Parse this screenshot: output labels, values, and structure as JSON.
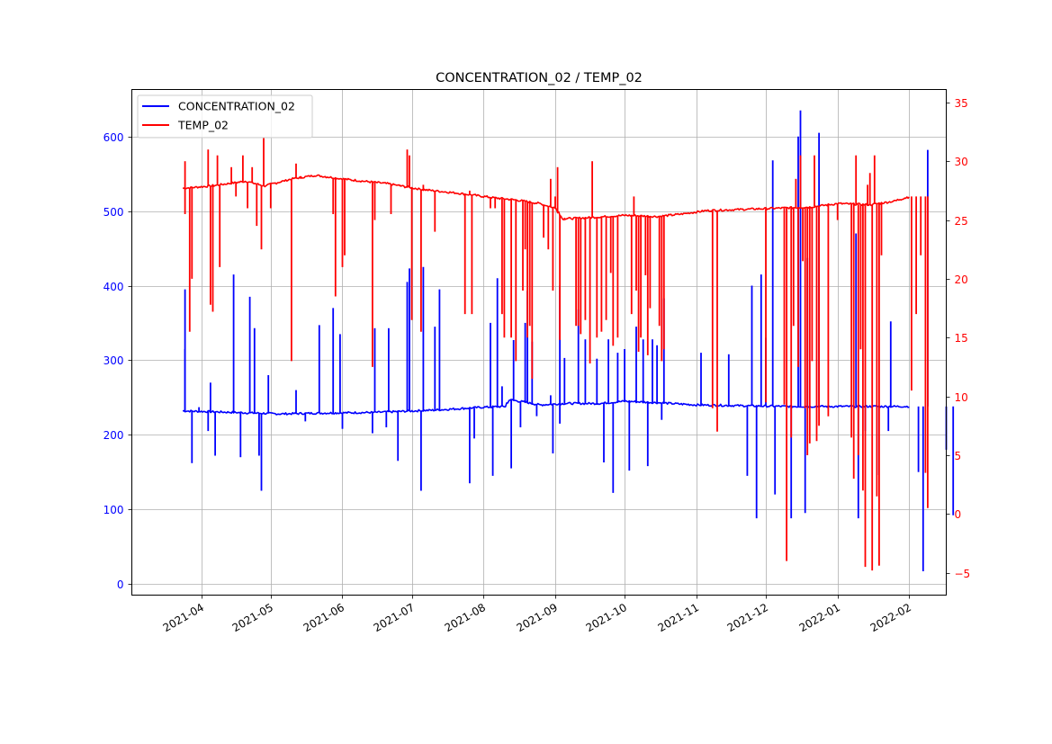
{
  "chart_data": {
    "type": "line",
    "title": "CONCENTRATION_02 / TEMP_02",
    "xlabel": "",
    "ylabel_left": "",
    "ylabel_right": "",
    "x_type": "date",
    "xlim": [
      "2021-03-02",
      "2022-02-17"
    ],
    "x_ticks": [
      "2021-04-01",
      "2021-05-01",
      "2021-06-01",
      "2021-07-01",
      "2021-08-01",
      "2021-09-01",
      "2021-10-01",
      "2021-11-01",
      "2021-12-01",
      "2022-01-01",
      "2022-02-01"
    ],
    "x_tick_labels": [
      "2021-04",
      "2021-05",
      "2021-06",
      "2021-07",
      "2021-08",
      "2021-09",
      "2021-10",
      "2021-11",
      "2021-12",
      "2022-01",
      "2022-02"
    ],
    "ylim_left": [
      -15,
      663
    ],
    "y_ticks_left": [
      0,
      100,
      200,
      300,
      400,
      500,
      600
    ],
    "ylim_right": [
      -6.9,
      36.1
    ],
    "y_ticks_right": [
      -5,
      0,
      5,
      10,
      15,
      20,
      25,
      30,
      35
    ],
    "y_tick_labels_right": [
      "−5",
      "0",
      "5",
      "10",
      "15",
      "20",
      "25",
      "30",
      "35"
    ],
    "grid": true,
    "legend_position": "upper-left",
    "colors": {
      "left_axis": "#0000ff",
      "right_axis": "#ff0000",
      "grid": "#b0b0b0"
    },
    "series": [
      {
        "name": "CONCENTRATION_02",
        "axis": "left",
        "color": "#0000ff",
        "baseline": [
          [
            "2021-03-24",
            232
          ],
          [
            "2021-04-15",
            230
          ],
          [
            "2021-05-05",
            228
          ],
          [
            "2021-05-20",
            229
          ],
          [
            "2021-06-15",
            230
          ],
          [
            "2021-07-10",
            233
          ],
          [
            "2021-08-01",
            237
          ],
          [
            "2021-08-10",
            238
          ],
          [
            "2021-08-12",
            247
          ],
          [
            "2021-08-20",
            243
          ],
          [
            "2021-08-25",
            240
          ],
          [
            "2021-09-05",
            242
          ],
          [
            "2021-09-20",
            242
          ],
          [
            "2021-10-01",
            245
          ],
          [
            "2021-10-15",
            243
          ],
          [
            "2021-11-01",
            240
          ],
          [
            "2021-11-20",
            239
          ],
          [
            "2021-12-10",
            238
          ],
          [
            "2022-01-01",
            238
          ],
          [
            "2022-01-20",
            238
          ],
          [
            "2022-02-01",
            238
          ]
        ],
        "spikes": [
          [
            "2021-03-25",
            395
          ],
          [
            "2021-03-25",
            315
          ],
          [
            "2021-03-28",
            162
          ],
          [
            "2021-03-31",
            237
          ],
          [
            "2021-04-04",
            205
          ],
          [
            "2021-04-05",
            270
          ],
          [
            "2021-04-07",
            172
          ],
          [
            "2021-04-15",
            415
          ],
          [
            "2021-04-18",
            170
          ],
          [
            "2021-04-22",
            385
          ],
          [
            "2021-04-24",
            343
          ],
          [
            "2021-04-26",
            172
          ],
          [
            "2021-04-27",
            125
          ],
          [
            "2021-04-30",
            280
          ],
          [
            "2021-05-12",
            260
          ],
          [
            "2021-05-16",
            218
          ],
          [
            "2021-05-22",
            347
          ],
          [
            "2021-05-28",
            370
          ],
          [
            "2021-05-31",
            335
          ],
          [
            "2021-06-01",
            208
          ],
          [
            "2021-06-14",
            202
          ],
          [
            "2021-06-15",
            343
          ],
          [
            "2021-06-20",
            210
          ],
          [
            "2021-06-21",
            343
          ],
          [
            "2021-06-25",
            165
          ],
          [
            "2021-06-29",
            405
          ],
          [
            "2021-06-30",
            423
          ],
          [
            "2021-07-05",
            125
          ],
          [
            "2021-07-06",
            425
          ],
          [
            "2021-07-11",
            345
          ],
          [
            "2021-07-13",
            395
          ],
          [
            "2021-07-26",
            135
          ],
          [
            "2021-07-28",
            195
          ],
          [
            "2021-08-04",
            350
          ],
          [
            "2021-08-05",
            145
          ],
          [
            "2021-08-07",
            410
          ],
          [
            "2021-08-09",
            265
          ],
          [
            "2021-08-13",
            155
          ],
          [
            "2021-08-14",
            327
          ],
          [
            "2021-08-17",
            210
          ],
          [
            "2021-08-19",
            350
          ],
          [
            "2021-08-20",
            393
          ],
          [
            "2021-08-22",
            325
          ],
          [
            "2021-08-24",
            225
          ],
          [
            "2021-08-30",
            253
          ],
          [
            "2021-08-31",
            175
          ],
          [
            "2021-09-03",
            400
          ],
          [
            "2021-09-03",
            215
          ],
          [
            "2021-09-05",
            303
          ],
          [
            "2021-09-11",
            368
          ],
          [
            "2021-09-14",
            328
          ],
          [
            "2021-09-19",
            302
          ],
          [
            "2021-09-22",
            163
          ],
          [
            "2021-09-24",
            328
          ],
          [
            "2021-09-26",
            122
          ],
          [
            "2021-09-28",
            310
          ],
          [
            "2021-10-01",
            315
          ],
          [
            "2021-10-03",
            152
          ],
          [
            "2021-10-06",
            345
          ],
          [
            "2021-10-09",
            328
          ],
          [
            "2021-10-11",
            158
          ],
          [
            "2021-10-13",
            328
          ],
          [
            "2021-10-15",
            320
          ],
          [
            "2021-10-17",
            220
          ],
          [
            "2021-10-18",
            383
          ],
          [
            "2021-11-03",
            310
          ],
          [
            "2021-11-15",
            308
          ],
          [
            "2021-11-23",
            145
          ],
          [
            "2021-11-25",
            400
          ],
          [
            "2021-11-27",
            88
          ],
          [
            "2021-11-29",
            415
          ],
          [
            "2021-12-01",
            330
          ],
          [
            "2021-12-04",
            568
          ],
          [
            "2021-12-05",
            120
          ],
          [
            "2021-12-12",
            88
          ],
          [
            "2021-12-15",
            600
          ],
          [
            "2021-12-16",
            635
          ],
          [
            "2021-12-18",
            95
          ],
          [
            "2021-12-19",
            437
          ],
          [
            "2021-12-24",
            605
          ],
          [
            "2022-01-09",
            470
          ],
          [
            "2022-01-10",
            88
          ],
          [
            "2022-01-13",
            205
          ],
          [
            "2022-01-18",
            146
          ],
          [
            "2022-01-23",
            205
          ],
          [
            "2022-01-24",
            352
          ],
          [
            "2022-02-05",
            150
          ],
          [
            "2022-02-07",
            17
          ],
          [
            "2022-02-09",
            582
          ],
          [
            "2022-02-17",
            180
          ],
          [
            "2022-02-20",
            92
          ]
        ]
      },
      {
        "name": "TEMP_02",
        "axis": "right",
        "color": "#ff0000",
        "baseline": [
          [
            "2021-03-24",
            27.7
          ],
          [
            "2021-04-05",
            27.9
          ],
          [
            "2021-04-20",
            28.3
          ],
          [
            "2021-04-28",
            27.9
          ],
          [
            "2021-05-10",
            28.5
          ],
          [
            "2021-05-20",
            28.8
          ],
          [
            "2021-06-05",
            28.4
          ],
          [
            "2021-06-20",
            28.1
          ],
          [
            "2021-07-05",
            27.6
          ],
          [
            "2021-07-20",
            27.3
          ],
          [
            "2021-08-05",
            26.9
          ],
          [
            "2021-08-15",
            26.7
          ],
          [
            "2021-08-25",
            26.4
          ],
          [
            "2021-09-01",
            26.0
          ],
          [
            "2021-09-04",
            25.1
          ],
          [
            "2021-09-15",
            25.2
          ],
          [
            "2021-10-01",
            25.4
          ],
          [
            "2021-10-15",
            25.3
          ],
          [
            "2021-10-25",
            25.5
          ],
          [
            "2021-11-05",
            25.8
          ],
          [
            "2021-11-20",
            25.9
          ],
          [
            "2021-12-05",
            26.0
          ],
          [
            "2021-12-20",
            26.1
          ],
          [
            "2022-01-01",
            26.4
          ],
          [
            "2022-01-15",
            26.3
          ],
          [
            "2022-01-25",
            26.6
          ],
          [
            "2022-02-01",
            27.0
          ]
        ],
        "spikes": [
          [
            "2021-03-25",
            30.0
          ],
          [
            "2021-03-25",
            25.5
          ],
          [
            "2021-03-27",
            15.5
          ],
          [
            "2021-03-28",
            20.0
          ],
          [
            "2021-04-04",
            31.0
          ],
          [
            "2021-04-05",
            17.8
          ],
          [
            "2021-04-06",
            17.2
          ],
          [
            "2021-04-08",
            30.5
          ],
          [
            "2021-04-09",
            21.0
          ],
          [
            "2021-04-14",
            29.5
          ],
          [
            "2021-04-16",
            27.0
          ],
          [
            "2021-04-19",
            30.5
          ],
          [
            "2021-04-21",
            26.0
          ],
          [
            "2021-04-23",
            29.5
          ],
          [
            "2021-04-25",
            24.5
          ],
          [
            "2021-04-27",
            22.5
          ],
          [
            "2021-04-28",
            32.0
          ],
          [
            "2021-05-01",
            26.0
          ],
          [
            "2021-05-10",
            13.0
          ],
          [
            "2021-05-12",
            29.8
          ],
          [
            "2021-05-14",
            28.5
          ],
          [
            "2021-05-28",
            25.5
          ],
          [
            "2021-05-29",
            18.5
          ],
          [
            "2021-06-01",
            21.0
          ],
          [
            "2021-06-02",
            22.0
          ],
          [
            "2021-06-14",
            12.5
          ],
          [
            "2021-06-14",
            28.0
          ],
          [
            "2021-06-15",
            25.0
          ],
          [
            "2021-06-22",
            25.5
          ],
          [
            "2021-06-26",
            28.0
          ],
          [
            "2021-06-29",
            31.0
          ],
          [
            "2021-06-30",
            30.5
          ],
          [
            "2021-07-01",
            16.5
          ],
          [
            "2021-07-05",
            15.5
          ],
          [
            "2021-07-06",
            28.0
          ],
          [
            "2021-07-11",
            24.0
          ],
          [
            "2021-07-24",
            17.0
          ],
          [
            "2021-07-26",
            27.5
          ],
          [
            "2021-07-27",
            17.0
          ],
          [
            "2021-08-04",
            26.0
          ],
          [
            "2021-08-06",
            26.0
          ],
          [
            "2021-08-09",
            17.0
          ],
          [
            "2021-08-10",
            15.0
          ],
          [
            "2021-08-13",
            15.0
          ],
          [
            "2021-08-15",
            13.0
          ],
          [
            "2021-08-18",
            19.0
          ],
          [
            "2021-08-19",
            22.5
          ],
          [
            "2021-08-20",
            15.0
          ],
          [
            "2021-08-21",
            16.0
          ],
          [
            "2021-08-22",
            11.5
          ],
          [
            "2021-08-27",
            23.5
          ],
          [
            "2021-08-29",
            22.5
          ],
          [
            "2021-08-30",
            28.5
          ],
          [
            "2021-08-31",
            19.0
          ],
          [
            "2021-09-01",
            27.0
          ],
          [
            "2021-09-02",
            29.5
          ],
          [
            "2021-09-03",
            14.8
          ],
          [
            "2021-09-05",
            25.2
          ],
          [
            "2021-09-10",
            16.0
          ],
          [
            "2021-09-11",
            16.0
          ],
          [
            "2021-09-12",
            15.3
          ],
          [
            "2021-09-14",
            16.5
          ],
          [
            "2021-09-16",
            12.8
          ],
          [
            "2021-09-17",
            30.0
          ],
          [
            "2021-09-19",
            15.0
          ],
          [
            "2021-09-21",
            15.5
          ],
          [
            "2021-09-23",
            16.5
          ],
          [
            "2021-09-25",
            20.5
          ],
          [
            "2021-09-26",
            14.3
          ],
          [
            "2021-09-28",
            15.0
          ],
          [
            "2021-10-04",
            17.0
          ],
          [
            "2021-10-05",
            27.0
          ],
          [
            "2021-10-06",
            19.0
          ],
          [
            "2021-10-07",
            13.8
          ],
          [
            "2021-10-08",
            15.0
          ],
          [
            "2021-10-10",
            20.3
          ],
          [
            "2021-10-11",
            13.5
          ],
          [
            "2021-10-12",
            17.5
          ],
          [
            "2021-10-16",
            16.0
          ],
          [
            "2021-10-17",
            13.0
          ],
          [
            "2021-10-18",
            14.0
          ],
          [
            "2021-11-08",
            9.0
          ],
          [
            "2021-11-10",
            7.0
          ],
          [
            "2021-12-01",
            9.5
          ],
          [
            "2021-12-09",
            9.3
          ],
          [
            "2021-12-10",
            -4.0
          ],
          [
            "2021-12-12",
            6.5
          ],
          [
            "2021-12-13",
            16.0
          ],
          [
            "2021-12-14",
            28.5
          ],
          [
            "2021-12-15",
            12.5
          ],
          [
            "2021-12-16",
            30.5
          ],
          [
            "2021-12-17",
            21.5
          ],
          [
            "2021-12-18",
            9.0
          ],
          [
            "2021-12-19",
            5.0
          ],
          [
            "2021-12-20",
            6.0
          ],
          [
            "2021-12-21",
            13.0
          ],
          [
            "2021-12-22",
            30.5
          ],
          [
            "2021-12-23",
            6.2
          ],
          [
            "2021-12-24",
            7.5
          ],
          [
            "2021-12-28",
            8.3
          ],
          [
            "2022-01-01",
            25.0
          ],
          [
            "2022-01-07",
            6.5
          ],
          [
            "2022-01-08",
            3.0
          ],
          [
            "2022-01-09",
            30.5
          ],
          [
            "2022-01-10",
            5.0
          ],
          [
            "2022-01-11",
            14.0
          ],
          [
            "2022-01-12",
            2.0
          ],
          [
            "2022-01-13",
            -4.5
          ],
          [
            "2022-01-14",
            28.0
          ],
          [
            "2022-01-15",
            29.0
          ],
          [
            "2022-01-16",
            -4.8
          ],
          [
            "2022-01-17",
            30.5
          ],
          [
            "2022-01-18",
            1.5
          ],
          [
            "2022-01-19",
            -4.4
          ],
          [
            "2022-01-20",
            22.0
          ],
          [
            "2022-02-02",
            10.5
          ],
          [
            "2022-02-04",
            17.0
          ],
          [
            "2022-02-06",
            22.0
          ],
          [
            "2022-02-08",
            3.5
          ],
          [
            "2022-02-09",
            0.5
          ]
        ]
      }
    ]
  }
}
